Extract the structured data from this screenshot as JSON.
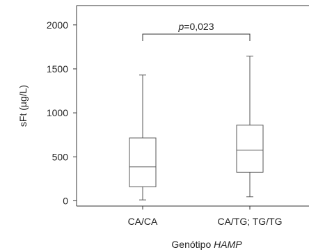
{
  "chart_data": {
    "type": "box",
    "categories": [
      "CA/CA",
      "CA/TG; TG/TG"
    ],
    "boxes": [
      {
        "category": "CA/CA",
        "min": 10,
        "q1": 160,
        "median": 385,
        "q3": 715,
        "max": 1430
      },
      {
        "category": "CA/TG; TG/TG",
        "min": 45,
        "q1": 325,
        "median": 575,
        "q3": 860,
        "max": 1645
      }
    ],
    "ylim": [
      -60,
      2220
    ],
    "yticks": [
      0,
      500,
      1000,
      1500,
      2000
    ],
    "ytick_labels": [
      "0",
      "500",
      "1000",
      "1500",
      "2000"
    ],
    "ylabel": "sFt (µg/L)",
    "xlabel_prefix": "Genótipo ",
    "xlabel_italic": "HAMP",
    "annotation": {
      "p_symbol": "p",
      "p_value": "=0,023",
      "bracket_y": 1895
    },
    "grid": false
  }
}
